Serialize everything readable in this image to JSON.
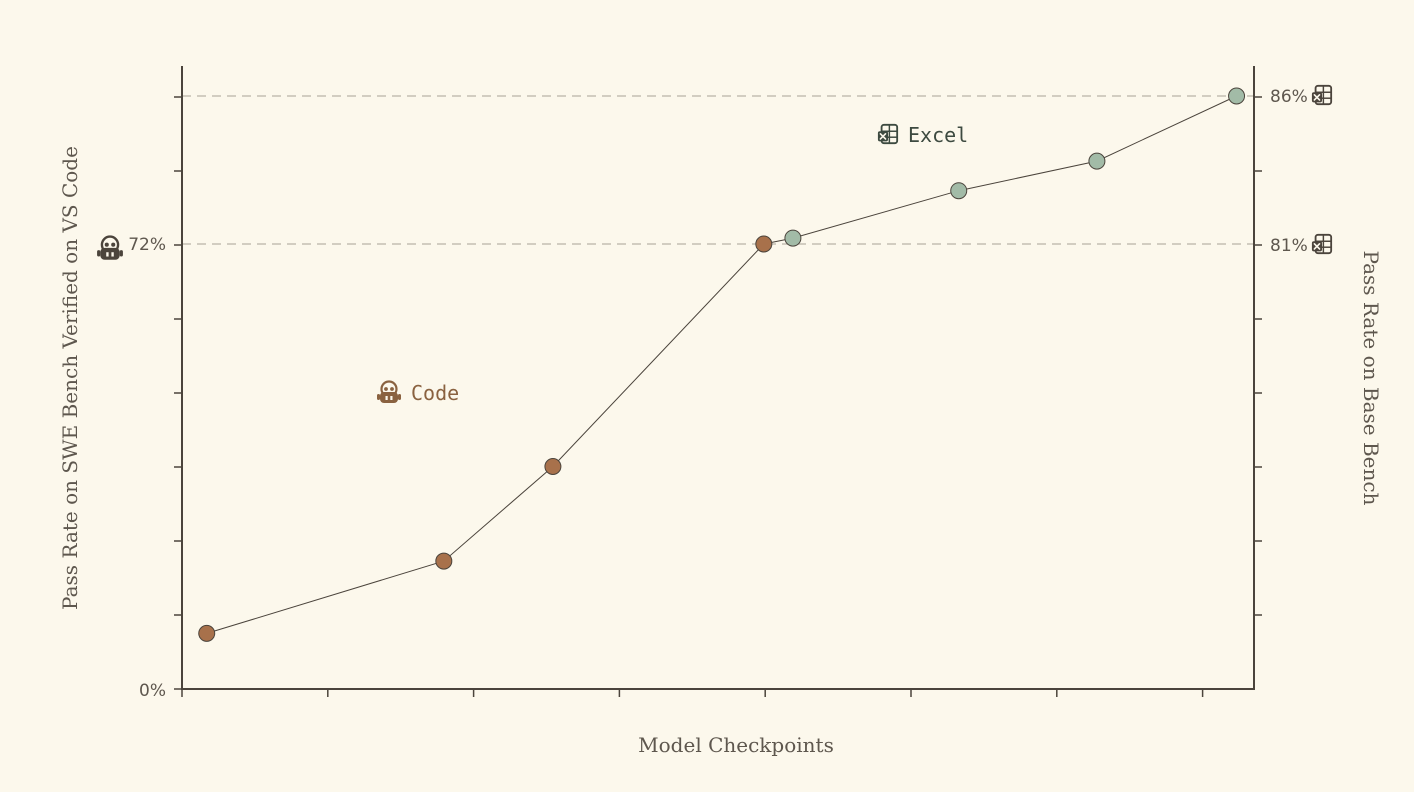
{
  "chart_data": {
    "type": "line",
    "xlabel": "Model Checkpoints",
    "ylabel_left": "Pass Rate on SWE Bench Verified on VS Code",
    "ylabel_right": "Pass Rate on Base Bench",
    "left_ticks": [
      {
        "value": 0,
        "label": "0%"
      },
      {
        "value": 72,
        "label": "72%"
      }
    ],
    "right_ticks": [
      {
        "value": 81,
        "label": "81%"
      },
      {
        "value": 86,
        "label": "86%"
      }
    ],
    "gridlines_at": [
      72
    ],
    "x_range": [
      0,
      7.37
    ],
    "series": [
      {
        "name": "Code",
        "axis": "left",
        "color": "#a8714b",
        "icon": "robot-icon",
        "label_position": [
          1.43,
          36
        ],
        "points": [
          [
            0.17,
            9
          ],
          [
            1.8,
            20.7
          ],
          [
            2.55,
            36
          ],
          [
            4.0,
            72
          ]
        ]
      },
      {
        "name": "Excel",
        "axis": "right",
        "color": "#a2bba7",
        "icon": "excel-icon",
        "label_position": [
          4.9,
          85.2
        ],
        "points": [
          [
            4.2,
            81.2
          ],
          [
            5.34,
            82.8
          ],
          [
            6.29,
            83.8
          ],
          [
            7.25,
            86
          ]
        ]
      }
    ]
  }
}
